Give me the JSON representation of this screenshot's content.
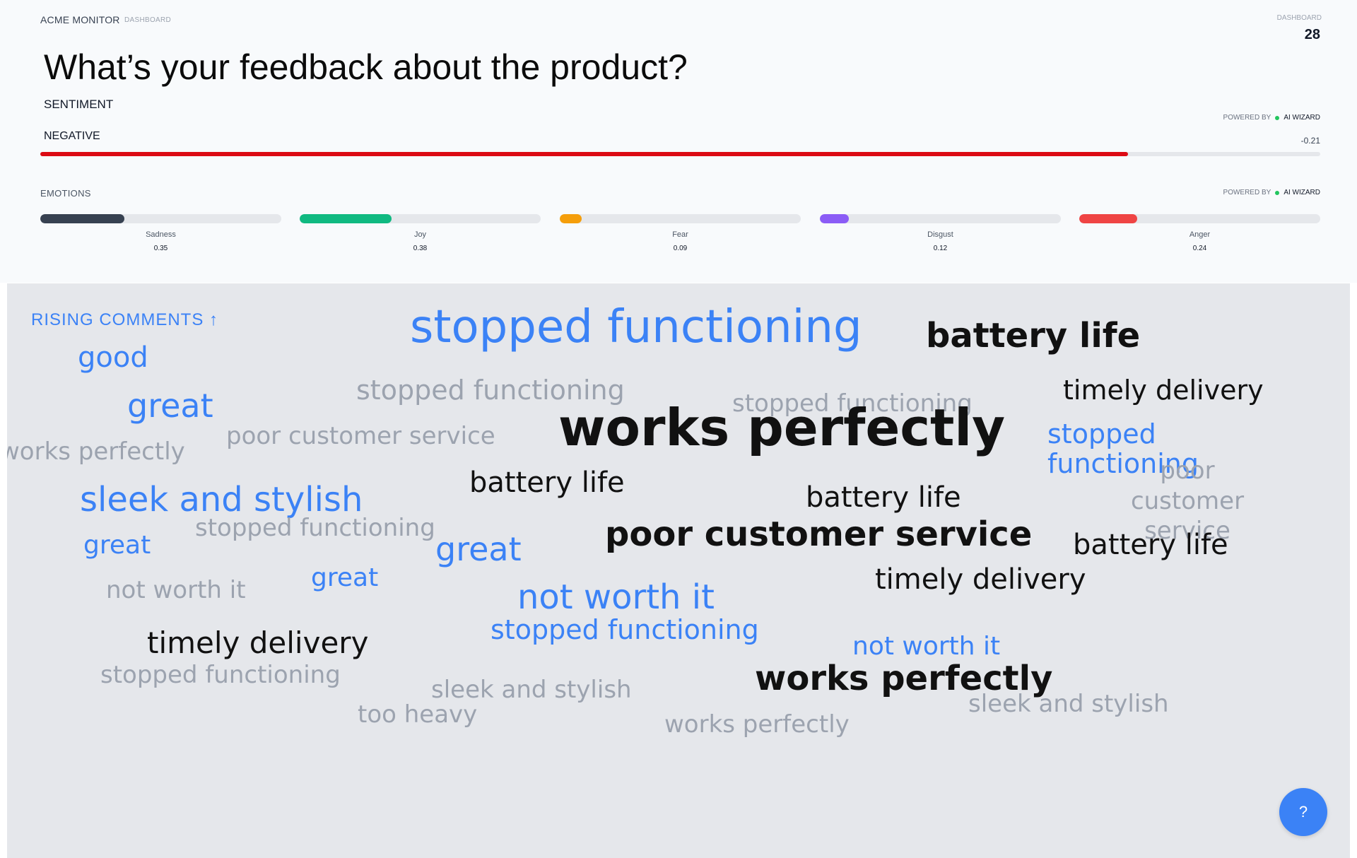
{
  "header": {
    "brand": "ACME MONITOR",
    "breadcrumb": "DASHBOARD",
    "counter_label": "DASHBOARD",
    "counter_value": "28"
  },
  "question": "What’s your feedback about the product?",
  "sentiment": {
    "label": "SENTIMENT",
    "value": "NEGATIVE",
    "powered_by": "POWERED BY",
    "provider": "AI WIZARD",
    "score": "-0.21",
    "bar_fraction": 0.85,
    "bar_color": "#dc0a14"
  },
  "emotions": {
    "label": "EMOTIONS",
    "powered_by": "POWERED BY",
    "provider": "AI WIZARD",
    "items": [
      {
        "name": "Sadness",
        "value": "0.35",
        "level": 0.35,
        "color": "#374151"
      },
      {
        "name": "Joy",
        "value": "0.38",
        "level": 0.38,
        "color": "#10b981"
      },
      {
        "name": "Fear",
        "value": "0.09",
        "level": 0.09,
        "color": "#f59e0b"
      },
      {
        "name": "Disgust",
        "value": "0.12",
        "level": 0.12,
        "color": "#8b5cf6"
      },
      {
        "name": "Anger",
        "value": "0.24",
        "level": 0.24,
        "color": "#ef4444"
      }
    ]
  },
  "cloud": {
    "title": "RISING COMMENTS ↑",
    "colors": {
      "blue": "#3b82f6",
      "black": "#111111",
      "gray": "#9ca3af"
    },
    "words": [
      {
        "text": "stopped functioning",
        "color": "blue",
        "weight": 5
      },
      {
        "text": "battery life",
        "color": "black",
        "weight": 4
      },
      {
        "text": "good",
        "color": "blue",
        "weight": 3
      },
      {
        "text": "stopped functioning",
        "color": "gray",
        "weight": 3
      },
      {
        "text": "timely delivery",
        "color": "black",
        "weight": 3
      },
      {
        "text": "great",
        "color": "blue",
        "weight": 4
      },
      {
        "text": "stopped functioning",
        "color": "gray",
        "weight": 2
      },
      {
        "text": "works perfectly",
        "color": "black",
        "weight": 6
      },
      {
        "text": "poor customer service",
        "color": "gray",
        "weight": 2
      },
      {
        "text": "works perfectly",
        "color": "gray",
        "weight": 2
      },
      {
        "text": "stopped functioning",
        "color": "blue",
        "weight": 3
      },
      {
        "text": "poor customer service",
        "color": "gray",
        "weight": 2
      },
      {
        "text": "battery life",
        "color": "black",
        "weight": 3
      },
      {
        "text": "sleek and stylish",
        "color": "blue",
        "weight": 4
      },
      {
        "text": "battery life",
        "color": "black",
        "weight": 3
      },
      {
        "text": "stopped functioning",
        "color": "gray",
        "weight": 2
      },
      {
        "text": "great",
        "color": "blue",
        "weight": 3
      },
      {
        "text": "great",
        "color": "blue",
        "weight": 4
      },
      {
        "text": "poor customer service",
        "color": "black",
        "weight": 4
      },
      {
        "text": "battery life",
        "color": "black",
        "weight": 3
      },
      {
        "text": "not worth it",
        "color": "gray",
        "weight": 2
      },
      {
        "text": "great",
        "color": "blue",
        "weight": 3
      },
      {
        "text": "not worth it",
        "color": "blue",
        "weight": 4
      },
      {
        "text": "timely delivery",
        "color": "black",
        "weight": 3
      },
      {
        "text": "stopped functioning",
        "color": "blue",
        "weight": 3
      },
      {
        "text": "timely delivery",
        "color": "black",
        "weight": 3
      },
      {
        "text": "not worth it",
        "color": "blue",
        "weight": 3
      },
      {
        "text": "stopped functioning",
        "color": "gray",
        "weight": 2
      },
      {
        "text": "works perfectly",
        "color": "black",
        "weight": 4
      },
      {
        "text": "sleek and stylish",
        "color": "gray",
        "weight": 2
      },
      {
        "text": "too heavy",
        "color": "gray",
        "weight": 2
      },
      {
        "text": "sleek and stylish",
        "color": "gray",
        "weight": 2
      },
      {
        "text": "works perfectly",
        "color": "gray",
        "weight": 2
      }
    ]
  },
  "help_button": "?"
}
